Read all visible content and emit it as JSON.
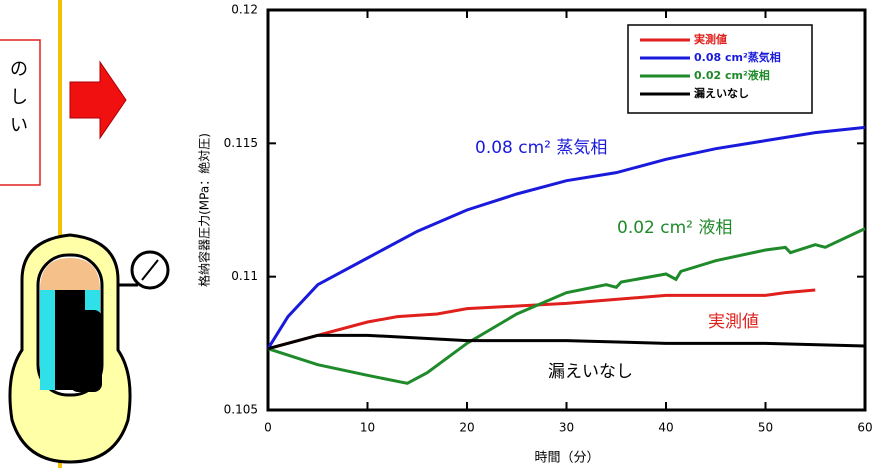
{
  "side_note_lines": [
    "の",
    "し",
    "い"
  ],
  "chart_data": {
    "type": "line",
    "x_label": "時間（分）",
    "y_label": "格納容器圧力(MPa：絶対圧)",
    "xlim": [
      0,
      60
    ],
    "xticks": [
      0,
      10,
      20,
      30,
      40,
      50,
      60
    ],
    "ylim": [
      0.105,
      0.12
    ],
    "yticks": [
      0.105,
      0.11,
      0.115,
      0.12
    ],
    "legend": "upper right",
    "series": [
      {
        "name": "実測値",
        "color": "#e0201c",
        "x": [
          0,
          5,
          10,
          13,
          17,
          20,
          30,
          40,
          50,
          52,
          55
        ],
        "values": [
          0.1073,
          0.1078,
          0.1083,
          0.1085,
          0.1086,
          0.1088,
          0.109,
          0.1093,
          0.1093,
          0.1094,
          0.1095
        ]
      },
      {
        "name": "0.08 cm²蒸気相",
        "color": "#1a1adc",
        "x": [
          0,
          2,
          5,
          10,
          15,
          20,
          25,
          30,
          35,
          40,
          45,
          50,
          55,
          60
        ],
        "values": [
          0.1073,
          0.1085,
          0.1097,
          0.1107,
          0.1117,
          0.1125,
          0.1131,
          0.1136,
          0.1139,
          0.1144,
          0.1148,
          0.1151,
          0.1154,
          0.1156
        ]
      },
      {
        "name": "0.02 cm²液相",
        "color": "#1e8a2a",
        "x": [
          0,
          5,
          10,
          14,
          16,
          20,
          25,
          30,
          34,
          35,
          35.5,
          40,
          41,
          41.5,
          45,
          50,
          52,
          52.5,
          55,
          56,
          60
        ],
        "values": [
          0.1073,
          0.1067,
          0.1063,
          0.106,
          0.1064,
          0.1075,
          0.1086,
          0.1094,
          0.1097,
          0.1096,
          0.1098,
          0.1101,
          0.1099,
          0.1102,
          0.1106,
          0.111,
          0.1111,
          0.1109,
          0.1112,
          0.1111,
          0.1118
        ]
      },
      {
        "name": "漏えいなし",
        "color": "#000000",
        "x": [
          0,
          5,
          10,
          20,
          30,
          40,
          50,
          60
        ],
        "values": [
          0.1073,
          0.1078,
          0.1078,
          0.1076,
          0.1076,
          0.1075,
          0.1075,
          0.1074
        ]
      }
    ],
    "annotations": [
      {
        "text": "0.08 cm² 蒸気相",
        "color": "#1a1adc"
      },
      {
        "text": "0.02 cm² 液相",
        "color": "#1e8a2a"
      },
      {
        "text": "実測値",
        "color": "#e0201c"
      },
      {
        "text": "漏えいなし",
        "color": "#000000"
      }
    ]
  }
}
